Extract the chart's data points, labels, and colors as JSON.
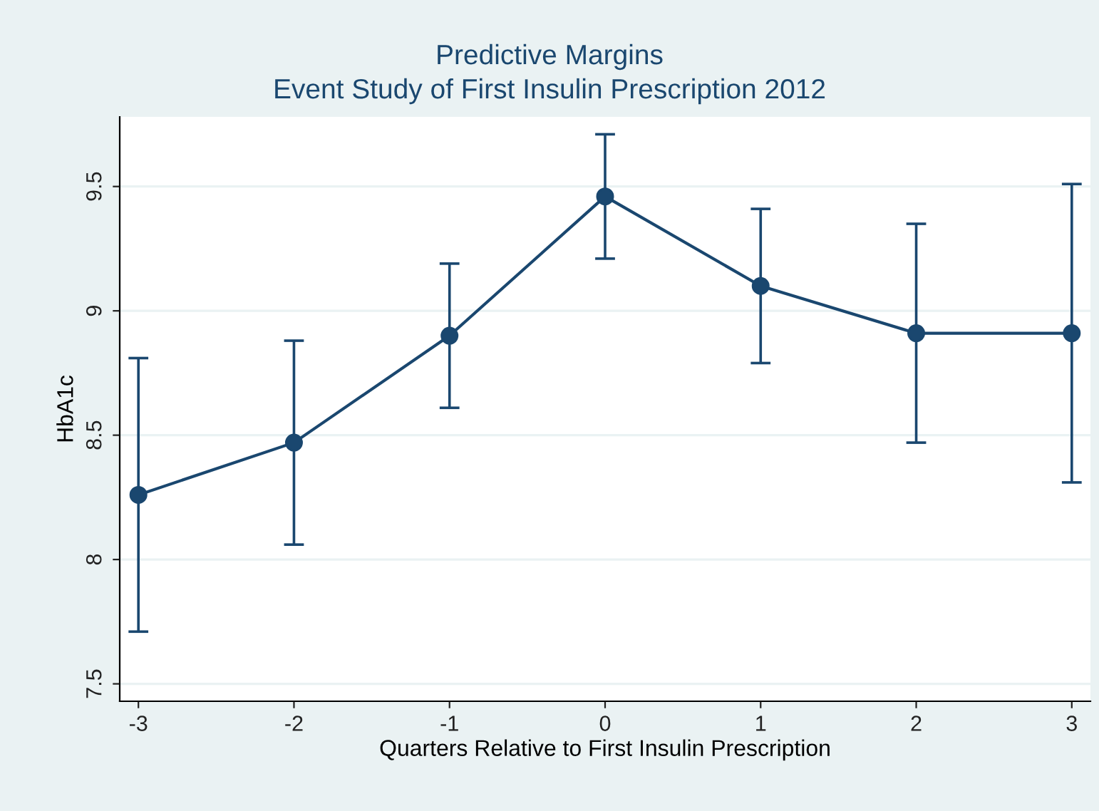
{
  "chart_data": {
    "type": "line",
    "title": "Predictive Margins",
    "subtitle": "Event Study of First Insulin Prescription 2012",
    "xlabel": "Quarters Relative to First Insulin Prescription",
    "ylabel": "HbA1c",
    "x": [
      -3,
      -2,
      -1,
      0,
      1,
      2,
      3
    ],
    "series": [
      {
        "color": "#1a476f",
        "values": [
          8.26,
          8.47,
          8.9,
          9.46,
          9.1,
          8.91,
          8.91
        ],
        "errors": [
          [
            7.71,
            8.81
          ],
          [
            8.06,
            8.88
          ],
          [
            8.61,
            9.19
          ],
          [
            9.21,
            9.71
          ],
          [
            8.79,
            9.41
          ],
          [
            8.47,
            9.35
          ],
          [
            8.31,
            9.51
          ]
        ]
      }
    ],
    "xlim": [
      -3.12,
      3.12
    ],
    "xticks": [
      -3,
      -2,
      -1,
      0,
      1,
      2,
      3
    ],
    "ylim": [
      7.43,
      9.78
    ],
    "yticks": [
      7.5,
      8,
      8.5,
      9,
      9.5
    ],
    "grid": "y",
    "marker": "circle",
    "line_style": "solid"
  }
}
